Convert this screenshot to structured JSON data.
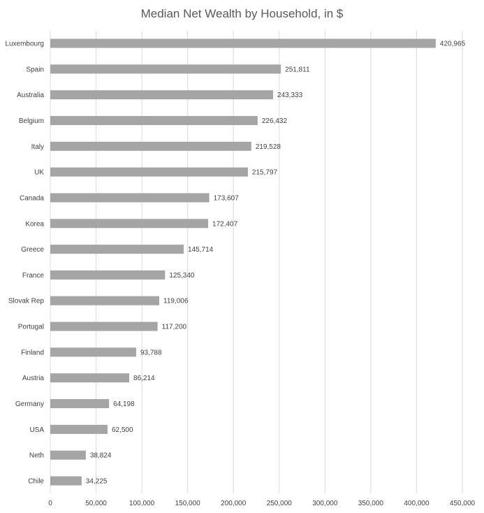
{
  "chart_data": {
    "type": "bar",
    "orientation": "horizontal",
    "title": "Median Net Wealth by Household, in $",
    "xlabel": "",
    "ylabel": "",
    "xlim": [
      0,
      450000
    ],
    "x_ticks": [
      0,
      50000,
      100000,
      150000,
      200000,
      250000,
      300000,
      350000,
      400000,
      450000
    ],
    "x_tick_labels": [
      "0",
      "50,000",
      "100,000",
      "150,000",
      "200,000",
      "250,000",
      "300,000",
      "350,000",
      "400,000",
      "450,000"
    ],
    "grid": "vertical",
    "legend": "none",
    "bar_color": "#a5a5a5",
    "categories": [
      "Luxembourg",
      "Spain",
      "Australia",
      "Belgium",
      "Italy",
      "UK",
      "Canada",
      "Korea",
      "Greece",
      "France",
      "Slovak Rep",
      "Portugal",
      "Finland",
      "Austria",
      "Germany",
      "USA",
      "Neth",
      "Chile"
    ],
    "values": [
      420965,
      251811,
      243333,
      226432,
      219528,
      215797,
      173607,
      172407,
      145714,
      125340,
      119006,
      117200,
      93788,
      86214,
      64198,
      62500,
      38824,
      34225
    ],
    "data_labels": [
      "420,965",
      "251,811",
      "243,333",
      "226,432",
      "219,528",
      "215,797",
      "173,607",
      "172,407",
      "145,714",
      "125,340",
      "119,006",
      "117,200",
      "93,788",
      "86,214",
      "64,198",
      "62,500",
      "38,824",
      "34,225"
    ]
  }
}
